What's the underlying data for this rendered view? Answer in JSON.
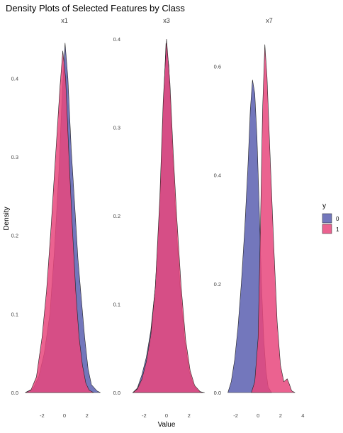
{
  "chart_data": {
    "type": "area",
    "title": "Density Plots of Selected Features by Class",
    "xlabel": "Value",
    "ylabel": "Density",
    "legend": {
      "title": "y",
      "placement": "right",
      "entries": [
        {
          "label": "0",
          "color": "#5b5fb0"
        },
        {
          "label": "1",
          "color": "#e8467c"
        }
      ]
    },
    "grid": false,
    "panels": [
      {
        "name": "x1",
        "xlim": [
          -3.6,
          3.6
        ],
        "ylim": [
          0,
          0.45
        ],
        "xticks": [
          -2,
          0,
          2
        ],
        "yticks": [
          0.0,
          0.1,
          0.2,
          0.3,
          0.4
        ],
        "ytick_labels": [
          "0.0",
          "0.1",
          "0.2",
          "0.3",
          "0.4"
        ],
        "series": [
          {
            "class": "0",
            "points": [
              [
                -3.5,
                0
              ],
              [
                -2.8,
                0.005
              ],
              [
                -2.3,
                0.02
              ],
              [
                -1.8,
                0.05
              ],
              [
                -1.3,
                0.1
              ],
              [
                -0.9,
                0.18
              ],
              [
                -0.5,
                0.28
              ],
              [
                -0.2,
                0.38
              ],
              [
                0.05,
                0.445
              ],
              [
                0.3,
                0.4
              ],
              [
                0.6,
                0.31
              ],
              [
                0.9,
                0.24
              ],
              [
                1.2,
                0.17
              ],
              [
                1.5,
                0.12
              ],
              [
                1.8,
                0.07
              ],
              [
                2.1,
                0.03
              ],
              [
                2.4,
                0.01
              ],
              [
                2.9,
                0.002
              ],
              [
                3.2,
                0
              ]
            ]
          },
          {
            "class": "1",
            "points": [
              [
                -3.5,
                0
              ],
              [
                -3.0,
                0.003
              ],
              [
                -2.5,
                0.02
              ],
              [
                -2.0,
                0.07
              ],
              [
                -1.6,
                0.13
              ],
              [
                -1.2,
                0.21
              ],
              [
                -0.8,
                0.3
              ],
              [
                -0.4,
                0.39
              ],
              [
                -0.15,
                0.435
              ],
              [
                0.1,
                0.4
              ],
              [
                0.4,
                0.3
              ],
              [
                0.7,
                0.21
              ],
              [
                1.0,
                0.13
              ],
              [
                1.3,
                0.07
              ],
              [
                1.6,
                0.035
              ],
              [
                1.9,
                0.012
              ],
              [
                2.2,
                0.003
              ],
              [
                2.6,
                0
              ]
            ]
          }
        ]
      },
      {
        "name": "x3",
        "xlim": [
          -3.6,
          3.6
        ],
        "ylim": [
          0,
          0.4
        ],
        "xticks": [
          -2,
          0,
          2
        ],
        "yticks": [
          0.0,
          0.1,
          0.2,
          0.3,
          0.4
        ],
        "ytick_labels": [
          "0.0",
          "0.1",
          "0.2",
          "0.3",
          "0.4"
        ],
        "series": [
          {
            "class": "0",
            "points": [
              [
                -3.0,
                0
              ],
              [
                -2.6,
                0.005
              ],
              [
                -2.2,
                0.02
              ],
              [
                -1.8,
                0.04
              ],
              [
                -1.4,
                0.07
              ],
              [
                -1.0,
                0.12
              ],
              [
                -0.6,
                0.21
              ],
              [
                -0.3,
                0.32
              ],
              [
                -0.05,
                0.395
              ],
              [
                0.2,
                0.37
              ],
              [
                0.5,
                0.28
              ],
              [
                0.8,
                0.2
              ],
              [
                1.2,
                0.12
              ],
              [
                1.6,
                0.06
              ],
              [
                2.0,
                0.025
              ],
              [
                2.4,
                0.008
              ],
              [
                2.8,
                0.002
              ],
              [
                3.2,
                0
              ]
            ]
          },
          {
            "class": "1",
            "points": [
              [
                -3.0,
                0
              ],
              [
                -2.6,
                0.004
              ],
              [
                -2.2,
                0.015
              ],
              [
                -1.8,
                0.035
              ],
              [
                -1.4,
                0.065
              ],
              [
                -1.0,
                0.12
              ],
              [
                -0.6,
                0.22
              ],
              [
                -0.3,
                0.33
              ],
              [
                0.0,
                0.4
              ],
              [
                0.3,
                0.35
              ],
              [
                0.6,
                0.27
              ],
              [
                0.9,
                0.2
              ],
              [
                1.3,
                0.12
              ],
              [
                1.7,
                0.06
              ],
              [
                2.1,
                0.025
              ],
              [
                2.5,
                0.008
              ],
              [
                3.0,
                0.001
              ],
              [
                3.4,
                0
              ]
            ]
          }
        ]
      },
      {
        "name": "x7",
        "xlim": [
          -2.8,
          4.8
        ],
        "ylim": [
          0,
          0.65
        ],
        "xticks": [
          -2,
          0,
          2,
          4
        ],
        "yticks": [
          0.0,
          0.2,
          0.4,
          0.6
        ],
        "ytick_labels": [
          "0.0",
          "0.2",
          "0.4",
          "0.6"
        ],
        "series": [
          {
            "class": "0",
            "points": [
              [
                -2.7,
                0
              ],
              [
                -2.4,
                0.02
              ],
              [
                -2.1,
                0.06
              ],
              [
                -1.8,
                0.12
              ],
              [
                -1.5,
                0.2
              ],
              [
                -1.2,
                0.3
              ],
              [
                -0.9,
                0.42
              ],
              [
                -0.7,
                0.52
              ],
              [
                -0.5,
                0.575
              ],
              [
                -0.3,
                0.55
              ],
              [
                -0.1,
                0.47
              ],
              [
                0.1,
                0.34
              ],
              [
                0.3,
                0.2
              ],
              [
                0.5,
                0.1
              ],
              [
                0.7,
                0.04
              ],
              [
                0.9,
                0.01
              ],
              [
                1.2,
                0
              ]
            ]
          },
          {
            "class": "1",
            "points": [
              [
                -0.6,
                0
              ],
              [
                -0.3,
                0.02
              ],
              [
                0.0,
                0.1
              ],
              [
                0.2,
                0.3
              ],
              [
                0.4,
                0.52
              ],
              [
                0.6,
                0.64
              ],
              [
                0.8,
                0.58
              ],
              [
                1.1,
                0.42
              ],
              [
                1.4,
                0.27
              ],
              [
                1.7,
                0.13
              ],
              [
                2.0,
                0.05
              ],
              [
                2.3,
                0.02
              ],
              [
                2.6,
                0.025
              ],
              [
                2.8,
                0.015
              ],
              [
                3.0,
                0.003
              ],
              [
                3.3,
                0
              ]
            ]
          }
        ]
      }
    ]
  }
}
